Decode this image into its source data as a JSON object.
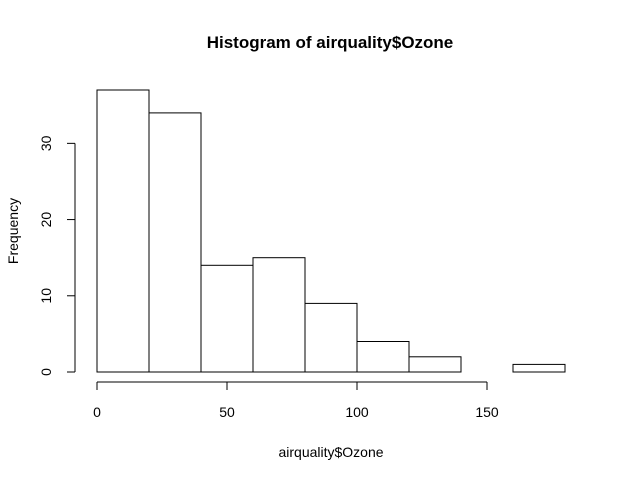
{
  "chart_data": {
    "type": "bar",
    "title": "Histogram of airquality$Ozone",
    "xlabel": "airquality$Ozone",
    "ylabel": "Frequency",
    "bin_edges": [
      0,
      20,
      40,
      60,
      80,
      100,
      120,
      140,
      160,
      180
    ],
    "values": [
      37,
      34,
      14,
      15,
      9,
      4,
      2,
      0,
      1
    ],
    "xlim": [
      0,
      180
    ],
    "ylim": [
      0,
      37
    ],
    "x_ticks": [
      0,
      50,
      100,
      150
    ],
    "y_ticks": [
      0,
      10,
      20,
      30
    ],
    "grid": false,
    "bar_fill": "#ffffff",
    "bar_stroke": "#000000"
  }
}
